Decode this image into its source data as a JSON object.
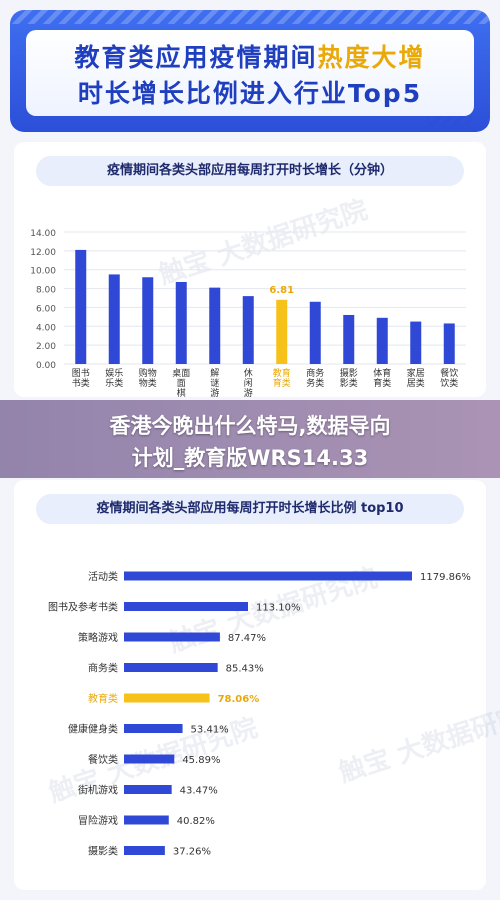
{
  "header": {
    "line1_prefix": "教育类应用疫情期间",
    "line1_highlight": "热度大增",
    "line2": "时长增长比例进入行业Top5"
  },
  "overlay": {
    "line1": "香港今晚出什么特马,数据导向",
    "line2": "计划_教育版WRS14.33"
  },
  "watermark": {
    "cn": "触宝 大数据研究院"
  },
  "colors": {
    "bar": "#2f48d6",
    "highlight": "#f6c21a",
    "highlight_text": "#e9a908",
    "axis_text": "#555555"
  },
  "chart_data": [
    {
      "type": "bar",
      "title": "疫情期间各类头部应用每周打开时长增长（分钟）",
      "categories": [
        "图书",
        "娱乐",
        "购物",
        "桌面",
        "解谜",
        "休闲",
        "教育",
        "商务",
        "摄影",
        "体育",
        "家居",
        "餐饮"
      ],
      "category_labels": [
        "图书\n书类",
        "娱乐\n乐类",
        "购物\n物类",
        "桌面\n面\n棋",
        "解\n谜\n游",
        "休\n闲\n游",
        "教育\n育类",
        "商务\n务类",
        "摄影\n影类",
        "体育\n育类",
        "家居\n居类",
        "餐饮\n饮类"
      ],
      "values": [
        12.1,
        9.5,
        9.2,
        8.7,
        8.1,
        7.2,
        6.81,
        6.6,
        5.2,
        4.9,
        4.5,
        4.3
      ],
      "highlight_index": 6,
      "highlight_label": "6.81",
      "yticks": [
        "0.00",
        "2.00",
        "4.00",
        "6.00",
        "8.00",
        "10.00",
        "12.00",
        "14.00"
      ],
      "ylim": [
        0,
        14
      ],
      "grid": true
    },
    {
      "type": "bar",
      "orientation": "horizontal",
      "title": "疫情期间各类头部应用每周打开时长增长比例 top10",
      "categories": [
        "活动类",
        "图书及参考书类",
        "策略游戏",
        "商务类",
        "教育类",
        "健康健身类",
        "餐饮类",
        "街机游戏",
        "冒险游戏",
        "摄影类"
      ],
      "values": [
        1179.86,
        113.1,
        87.47,
        85.43,
        78.06,
        53.41,
        45.89,
        43.47,
        40.82,
        37.26
      ],
      "value_labels": [
        "1179.86%",
        "113.10%",
        "87.47%",
        "85.43%",
        "78.06%",
        "53.41%",
        "45.89%",
        "43.47%",
        "40.82%",
        "37.26%"
      ],
      "highlight_index": 4
    }
  ]
}
